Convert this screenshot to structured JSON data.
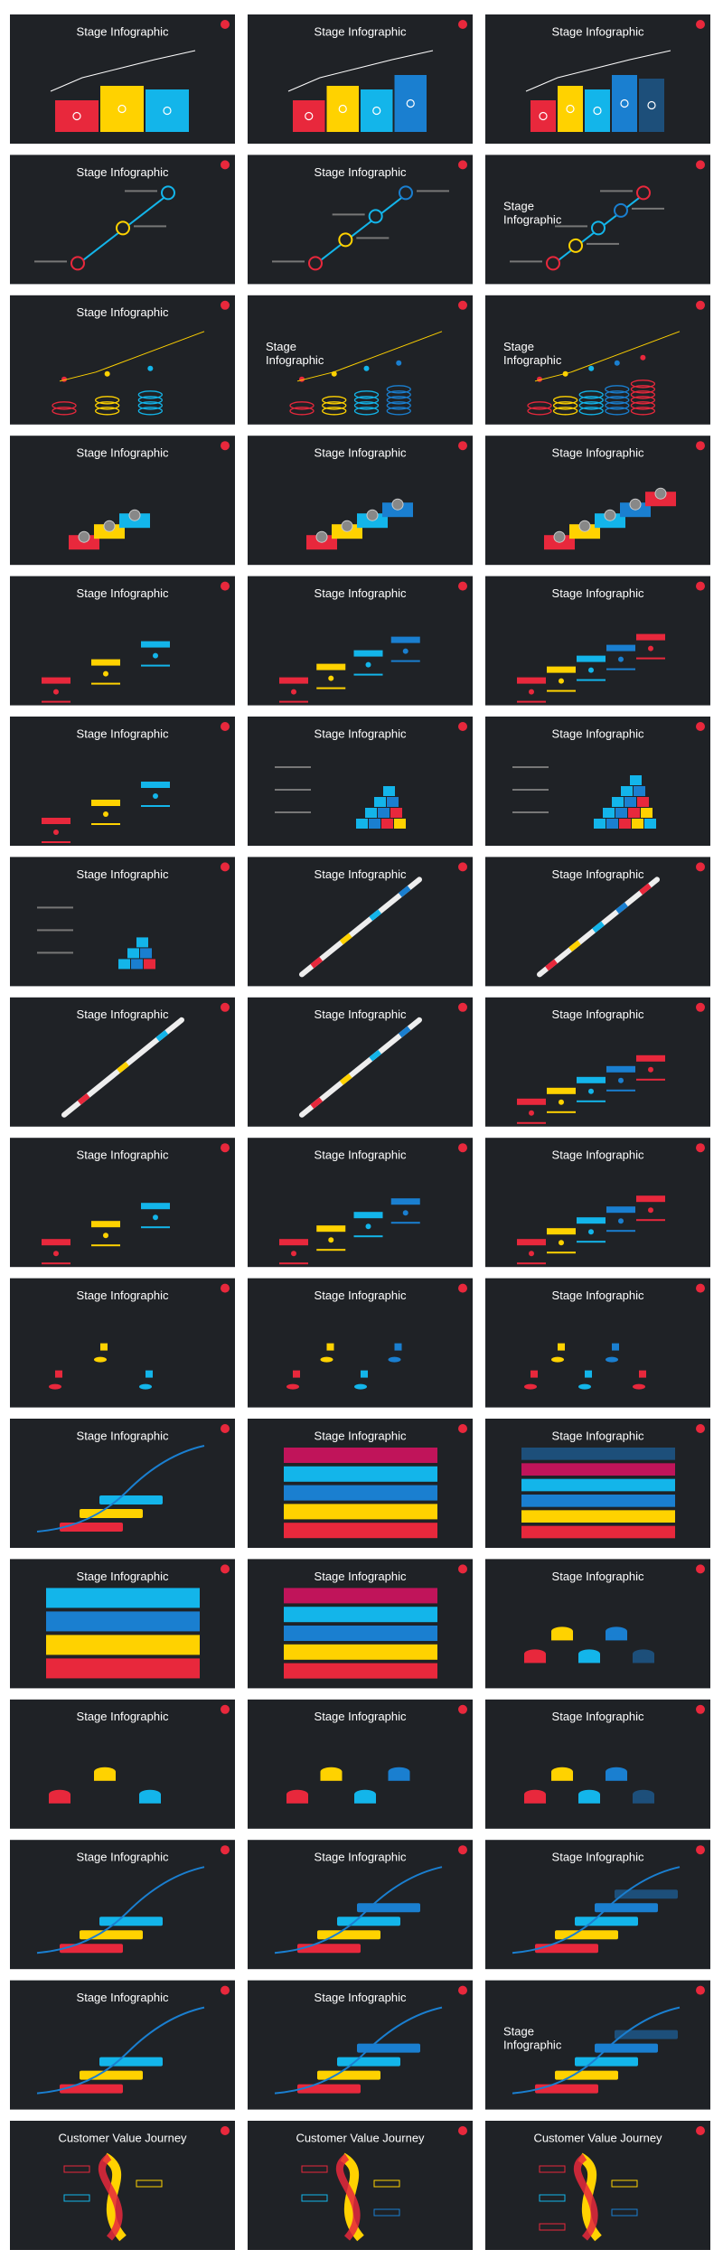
{
  "slides": [
    {
      "title": "Stage Infographic"
    },
    {
      "title": "Stage Infographic"
    },
    {
      "title": "Stage Infographic"
    },
    {
      "title": "Stage Infographic"
    },
    {
      "title": "Stage Infographic"
    },
    {
      "title": "Stage Infographic",
      "title_position": "left"
    },
    {
      "title": "Stage Infographic"
    },
    {
      "title": "Stage Infographic",
      "title_position": "left"
    },
    {
      "title": "Stage Infographic",
      "title_position": "left"
    },
    {
      "title": "Stage Infographic"
    },
    {
      "title": "Stage Infographic"
    },
    {
      "title": "Stage Infographic"
    },
    {
      "title": "Stage Infographic"
    },
    {
      "title": "Stage Infographic"
    },
    {
      "title": "Stage Infographic"
    },
    {
      "title": "Stage Infographic"
    },
    {
      "title": "Stage Infographic"
    },
    {
      "title": "Stage Infographic"
    },
    {
      "title": "Stage Infographic"
    },
    {
      "title": "Stage Infographic"
    },
    {
      "title": "Stage Infographic"
    },
    {
      "title": "Stage Infographic"
    },
    {
      "title": "Stage Infographic"
    },
    {
      "title": "Stage Infographic"
    },
    {
      "title": "Stage Infographic"
    },
    {
      "title": "Stage Infographic"
    },
    {
      "title": "Stage Infographic"
    },
    {
      "title": "Stage Infographic"
    },
    {
      "title": "Stage Infographic"
    },
    {
      "title": "Stage Infographic"
    },
    {
      "title": "Stage Infographic"
    },
    {
      "title": "Stage Infographic"
    },
    {
      "title": "Stage Infographic"
    },
    {
      "title": "Stage Infographic"
    },
    {
      "title": "Stage Infographic"
    },
    {
      "title": "Stage Infographic"
    },
    {
      "title": "Stage Infographic"
    },
    {
      "title": "Stage Infographic"
    },
    {
      "title": "Stage Infographic"
    },
    {
      "title": "Stage Infographic"
    },
    {
      "title": "Stage Infographic"
    },
    {
      "title": "Stage Infographic"
    },
    {
      "title": "Stage Infographic"
    },
    {
      "title": "Stage Infographic"
    },
    {
      "title": "Stage Infographic",
      "title_position": "left"
    },
    {
      "title": "Customer Value Journey"
    },
    {
      "title": "Customer Value Journey"
    },
    {
      "title": "Customer Value Journey"
    }
  ]
}
